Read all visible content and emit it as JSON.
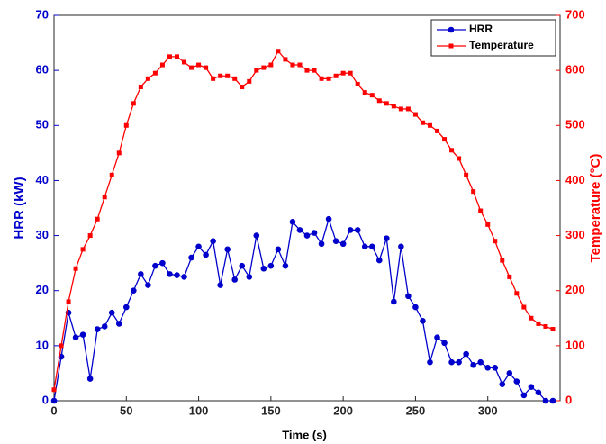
{
  "chart_data": {
    "type": "line",
    "x_label": "Time (s)",
    "y_label": "HRR (kW)",
    "y2_label": "Temperature (°C)",
    "x": [
      0,
      5,
      10,
      15,
      20,
      25,
      30,
      35,
      40,
      45,
      50,
      55,
      60,
      65,
      70,
      75,
      80,
      85,
      90,
      95,
      100,
      105,
      110,
      115,
      120,
      125,
      130,
      135,
      140,
      145,
      150,
      155,
      160,
      165,
      170,
      175,
      180,
      185,
      190,
      195,
      200,
      205,
      210,
      215,
      220,
      225,
      230,
      235,
      240,
      245,
      250,
      255,
      260,
      265,
      270,
      275,
      280,
      285,
      290,
      295,
      300,
      305,
      310,
      315,
      320,
      325,
      330,
      335,
      340,
      345
    ],
    "series": [
      {
        "name": "HRR",
        "color": "#0000cc",
        "marker": "circle",
        "axis": "y",
        "values": [
          0,
          8,
          16,
          11.5,
          12,
          4,
          13,
          13.5,
          16,
          14,
          17,
          20,
          23,
          21,
          24.5,
          25,
          23,
          22.8,
          22.5,
          26,
          28,
          26.5,
          29,
          21,
          27.5,
          22,
          24.5,
          22.5,
          30,
          24,
          24.5,
          27.5,
          24.5,
          32.5,
          31,
          30,
          30.5,
          28.5,
          33,
          29,
          28.5,
          31,
          31,
          28,
          28,
          25.5,
          29.5,
          18,
          28,
          19,
          17,
          14.5,
          7,
          11.5,
          10.5,
          7,
          7,
          8.5,
          6.5,
          7,
          6,
          6,
          3,
          5,
          3.5,
          1,
          2.5,
          1.5,
          0,
          0
        ]
      },
      {
        "name": "Temperature",
        "color": "#ff0000",
        "marker": "square",
        "axis": "y2",
        "values": [
          20,
          100,
          180,
          240,
          275,
          300,
          330,
          370,
          410,
          450,
          500,
          540,
          570,
          585,
          595,
          610,
          625,
          625,
          615,
          605,
          610,
          605,
          585,
          590,
          590,
          585,
          570,
          580,
          600,
          605,
          610,
          635,
          620,
          610,
          610,
          600,
          600,
          585,
          585,
          590,
          595,
          595,
          575,
          560,
          555,
          545,
          540,
          535,
          530,
          530,
          520,
          505,
          500,
          490,
          475,
          455,
          440,
          410,
          380,
          345,
          320,
          290,
          255,
          225,
          195,
          170,
          150,
          140,
          135,
          130
        ]
      }
    ],
    "xlim": [
      0,
      350
    ],
    "xticks": [
      0,
      50,
      100,
      150,
      200,
      250,
      300
    ],
    "ylim": [
      0,
      70
    ],
    "yticks": [
      0,
      10,
      20,
      30,
      40,
      50,
      60,
      70
    ],
    "y2lim": [
      0,
      700
    ],
    "y2ticks": [
      0,
      100,
      200,
      300,
      400,
      500,
      600,
      700
    ],
    "legend": "top-right"
  }
}
